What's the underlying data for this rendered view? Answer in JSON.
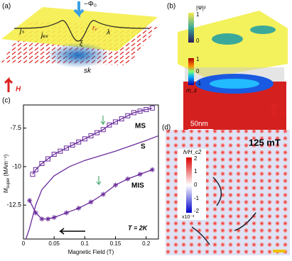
{
  "panel_a": {
    "label": "(a)",
    "flux": "−Φ₀",
    "js": "jₛ",
    "jex": "jₑₓ",
    "rv": "rᵥ",
    "lambda": "λ",
    "xi": "ξ",
    "sk": "sk",
    "field": "H"
  },
  "panel_b": {
    "label": "(b)",
    "psi_label": "|Ψ|²",
    "psi_ticks": [
      "1",
      "0"
    ],
    "mz_label": "m_z",
    "mz_ticks": [
      "1",
      "0",
      "-1"
    ],
    "scale_bar": "50nm",
    "field": "H"
  },
  "chart_data": {
    "type": "line",
    "panel_label": "(c)",
    "x_label": "Magnetic Field (T)",
    "y_label": {
      "symbol": "M",
      "sub": "super",
      "unit": "(MAm⁻¹)"
    },
    "xlim": [
      0,
      0.22
    ],
    "xticks": [
      0,
      0.05,
      0.1,
      0.15,
      0.2
    ],
    "ylim": [
      -14.7,
      -6.0
    ],
    "yticks": [
      -12.5,
      -10,
      -7.5
    ],
    "annotations": [
      "MS",
      "S",
      "MIS",
      "T = 2K"
    ],
    "series": [
      {
        "name": "MS",
        "color": "#6a2c9c",
        "marker": "square",
        "x": [
          0.015,
          0.02,
          0.03,
          0.04,
          0.05,
          0.06,
          0.07,
          0.08,
          0.09,
          0.1,
          0.11,
          0.12,
          0.13,
          0.14,
          0.15,
          0.16,
          0.17,
          0.18,
          0.19,
          0.2,
          0.21
        ],
        "values": [
          -10.5,
          -10.2,
          -9.8,
          -9.5,
          -9.2,
          -9.0,
          -8.8,
          -8.6,
          -8.4,
          -8.2,
          -8.0,
          -7.8,
          -7.6,
          -7.3,
          -7.1,
          -6.9,
          -6.7,
          -6.5,
          -6.4,
          -6.3,
          -6.2
        ]
      },
      {
        "name": "S",
        "color": "#6a2c9c",
        "marker": "none",
        "x": [
          0.004,
          0.01,
          0.02,
          0.03,
          0.05,
          0.075,
          0.1,
          0.15,
          0.2,
          0.22
        ],
        "values": [
          -14.7,
          -14.0,
          -12.5,
          -11.5,
          -10.6,
          -10.0,
          -9.6,
          -9.0,
          -8.3,
          -8.0
        ]
      },
      {
        "name": "MIS",
        "color": "#6a2c9c",
        "marker": "star",
        "x": [
          0.01,
          0.02,
          0.03,
          0.04,
          0.05,
          0.07,
          0.09,
          0.11,
          0.13,
          0.15,
          0.17,
          0.19,
          0.21
        ],
        "values": [
          -12.2,
          -13.0,
          -13.4,
          -13.4,
          -13.3,
          -13.0,
          -12.7,
          -12.3,
          -11.8,
          -11.2,
          -10.8,
          -10.5,
          -10.2
        ]
      }
    ]
  },
  "panel_d": {
    "label": "(d)",
    "cbar_label": "h/H_c2",
    "cbar_ticks": [
      "2",
      "1",
      "0",
      "-1",
      "-2"
    ],
    "cbar_exp": "x10⁻³",
    "field_value": "125 mT"
  }
}
